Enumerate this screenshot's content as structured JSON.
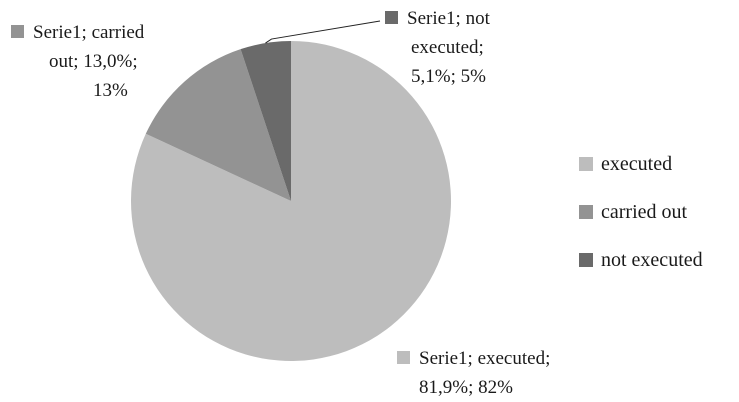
{
  "chart_data": {
    "type": "pie",
    "title": "",
    "categories": [
      "executed",
      "carried out",
      "not executed"
    ],
    "values": [
      81.9,
      13.0,
      5.1
    ],
    "colors": [
      "#bdbdbd",
      "#939393",
      "#6a6a6a"
    ],
    "legend_position": "right",
    "data_labels": [
      {
        "lines": [
          "Serie1; executed;",
          "81,9%; 82%"
        ]
      },
      {
        "lines": [
          "Serie1; carried",
          "out; 13,0%;",
          "13%"
        ]
      },
      {
        "lines": [
          "Serie1; not",
          "executed;",
          "5,1%; 5%"
        ]
      }
    ]
  }
}
